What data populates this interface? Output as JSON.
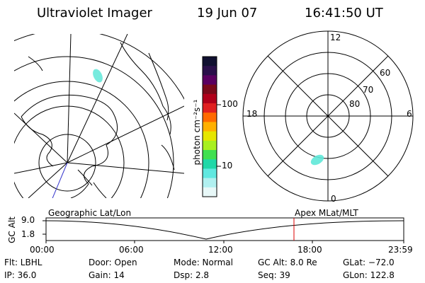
{
  "header": {
    "title": "Ultraviolet Imager",
    "date": "19 Jun 07",
    "time": "16:41:50 UT"
  },
  "colorbar": {
    "unit_label": "photon cm⁻²s⁻¹",
    "tick_labels": [
      "100",
      "10"
    ],
    "colors": [
      "#101030",
      "#2a0f4a",
      "#5a0060",
      "#7a0a1a",
      "#b0001a",
      "#e02020",
      "#ff6a00",
      "#ffb000",
      "#e6e600",
      "#a8f020",
      "#40e050",
      "#20d8a8",
      "#60e8e0",
      "#b0f0f0",
      "#e8f8f8"
    ]
  },
  "right_map": {
    "mlt_labels": {
      "top": "12",
      "bottom": "0",
      "left": "18",
      "right": "6"
    },
    "lat_labels": [
      "60",
      "70",
      "80"
    ],
    "blob_color": "#5fe8d8"
  },
  "left_map": {
    "blob_color": "#5fe8d8",
    "line_color": "#3333cc"
  },
  "timeline": {
    "y_axis_label": "GC Alt",
    "y_ticks": [
      "9.0",
      "1.8"
    ],
    "left_caption": "Geographic Lat/Lon",
    "right_caption": "Apex  MLat/MLT",
    "x_ticks": [
      "00:00",
      "06:00",
      "12:00",
      "18:00",
      "23:59"
    ],
    "marker_color": "#dd0000"
  },
  "footer": {
    "filter": "Flt: LBHL",
    "ip": "IP: 36.0",
    "door": "Door: Open",
    "gain": "Gain: 14",
    "mode": "Mode: Normal",
    "dsp": "Dsp:     2.8",
    "gc_alt": "GC Alt: 8.0 Re",
    "seq": "Seq: 39",
    "glat": "GLat: −72.0",
    "glon": "GLon: 122.8"
  }
}
